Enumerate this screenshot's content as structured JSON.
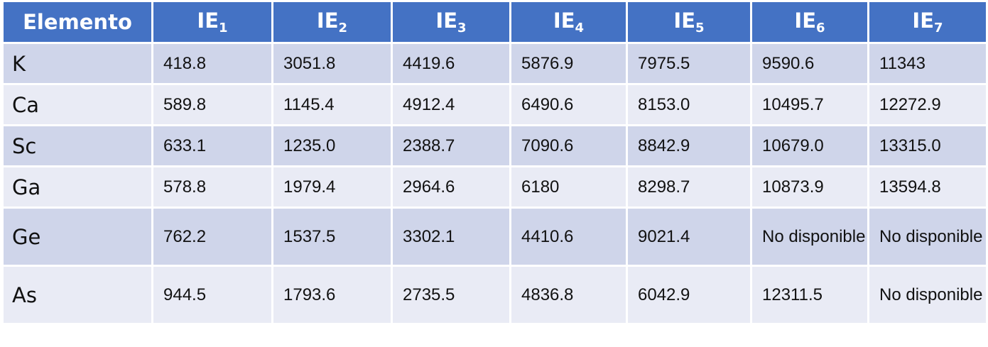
{
  "table": {
    "header": [
      {
        "main": "Elemento"
      },
      {
        "main": "IE",
        "sub": "1"
      },
      {
        "main": "IE",
        "sub": "2"
      },
      {
        "main": "IE",
        "sub": "3"
      },
      {
        "main": "IE",
        "sub": "4"
      },
      {
        "main": "IE",
        "sub": "5"
      },
      {
        "main": "IE",
        "sub": "6"
      },
      {
        "main": "IE",
        "sub": "7"
      }
    ],
    "rows": [
      [
        "K",
        "418.8",
        "3051.8",
        "4419.6",
        "5876.9",
        "7975.5",
        "9590.6",
        "11343"
      ],
      [
        "Ca",
        "589.8",
        "1145.4",
        "4912.4",
        "6490.6",
        "8153.0",
        "10495.7",
        "12272.9"
      ],
      [
        "Sc",
        "633.1",
        "1235.0",
        "2388.7",
        "7090.6",
        "8842.9",
        "10679.0",
        "13315.0"
      ],
      [
        "Ga",
        "578.8",
        "1979.4",
        "2964.6",
        "6180",
        "8298.7",
        "10873.9",
        "13594.8"
      ],
      [
        "Ge",
        "762.2",
        "1537.5",
        "3302.1",
        "4410.6",
        "9021.4",
        "No disponible",
        "No disponible"
      ],
      [
        "As",
        "944.5",
        "1793.6",
        "2735.5",
        "4836.8",
        "6042.9",
        "12311.5",
        "No disponible"
      ]
    ]
  }
}
